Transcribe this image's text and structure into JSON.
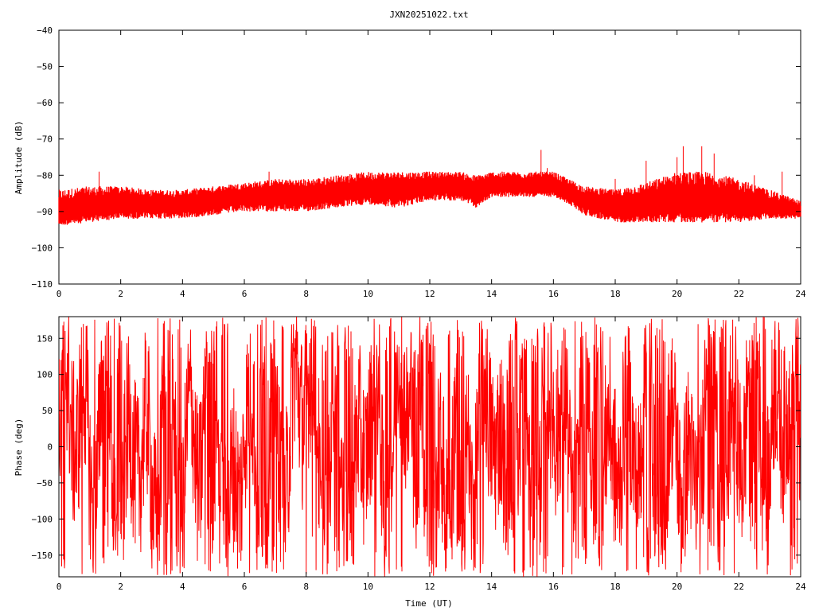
{
  "title": "JXN20251022.txt",
  "colors": {
    "series": "#ff0000",
    "frame": "#000000",
    "background": "#ffffff"
  },
  "chart_data": [
    {
      "type": "line",
      "ylabel": "Amplitude (dB)",
      "xlabel": "",
      "xlim": [
        0,
        24
      ],
      "ylim": [
        -110,
        -40
      ],
      "xticks": [
        0,
        2,
        4,
        6,
        8,
        10,
        12,
        14,
        16,
        18,
        20,
        22,
        24
      ],
      "yticks": [
        -110,
        -100,
        -90,
        -80,
        -70,
        -60,
        -50,
        -40
      ],
      "xtick_labels": [
        "0",
        "2",
        "4",
        "6",
        "8",
        "10",
        "12",
        "14",
        "16",
        "18",
        "20",
        "22",
        "24"
      ],
      "ytick_labels": [
        "−110",
        "−100",
        "−90",
        "−80",
        "−70",
        "−60",
        "−50",
        "−40"
      ],
      "grid": false,
      "series": [
        {
          "envelope": true,
          "x": [
            0,
            1,
            2,
            3,
            4,
            5,
            6,
            7,
            8,
            9,
            10,
            11,
            12,
            13,
            13.5,
            14,
            15,
            16,
            16.5,
            17,
            18,
            19,
            20,
            21,
            22,
            23,
            24
          ],
          "y_low": [
            -94,
            -93,
            -92,
            -92,
            -92,
            -91,
            -90,
            -90,
            -90,
            -89,
            -88,
            -89,
            -87,
            -87,
            -89,
            -86,
            -86,
            -86,
            -88,
            -91,
            -93,
            -93,
            -93,
            -93,
            -93,
            -92,
            -92
          ],
          "y_mid": [
            -90,
            -89,
            -88,
            -88,
            -88,
            -87,
            -86,
            -86,
            -86,
            -85,
            -84,
            -84,
            -83,
            -83,
            -85,
            -83,
            -83,
            -83,
            -85,
            -87,
            -89,
            -88,
            -87,
            -87,
            -88,
            -89,
            -90
          ],
          "y_high": [
            -84,
            -83,
            -83,
            -84,
            -84,
            -83,
            -82,
            -81,
            -81,
            -80,
            -79,
            -79,
            -79,
            -79,
            -80,
            -79,
            -79,
            -79,
            -81,
            -83,
            -84,
            -82,
            -79,
            -79,
            -81,
            -84,
            -87
          ],
          "spikes": [
            {
              "x": 1.3,
              "y": -79
            },
            {
              "x": 6.8,
              "y": -79
            },
            {
              "x": 12.2,
              "y": -80
            },
            {
              "x": 15.6,
              "y": -73
            },
            {
              "x": 15.8,
              "y": -78
            },
            {
              "x": 18.0,
              "y": -81
            },
            {
              "x": 19.0,
              "y": -76
            },
            {
              "x": 20.0,
              "y": -75
            },
            {
              "x": 20.2,
              "y": -72
            },
            {
              "x": 20.8,
              "y": -72
            },
            {
              "x": 21.2,
              "y": -74
            },
            {
              "x": 22.5,
              "y": -80
            },
            {
              "x": 23.4,
              "y": -79
            }
          ]
        }
      ]
    },
    {
      "type": "line",
      "ylabel": "Phase (deg)",
      "xlabel": "Time (UT)",
      "xlim": [
        0,
        24
      ],
      "ylim": [
        -180,
        180
      ],
      "xticks": [
        0,
        2,
        4,
        6,
        8,
        10,
        12,
        14,
        16,
        18,
        20,
        22,
        24
      ],
      "yticks": [
        -150,
        -100,
        -50,
        0,
        50,
        100,
        150
      ],
      "xtick_labels": [
        "0",
        "2",
        "4",
        "6",
        "8",
        "10",
        "12",
        "14",
        "16",
        "18",
        "20",
        "22",
        "24"
      ],
      "ytick_labels": [
        "−150",
        "−100",
        "−50",
        "0",
        "50",
        "100",
        "150"
      ],
      "grid": false,
      "series": [
        {
          "wrapped_phase": true,
          "x": [
            0,
            0.5,
            1,
            1.5,
            2,
            2.5,
            3,
            3.5,
            4,
            4.5,
            5,
            5.5,
            6,
            6.5,
            7,
            7.5,
            8,
            8.5,
            9,
            9.5,
            10,
            10.5,
            11,
            11.5,
            12,
            12.5,
            13,
            13.5,
            14,
            14.5,
            15,
            15.5,
            16,
            16.5,
            17,
            17.5,
            18,
            18.5,
            19,
            19.5,
            20,
            20.5,
            21,
            21.5,
            22,
            22.5,
            23,
            23.5,
            24
          ],
          "y": [
            0,
            90,
            -50,
            120,
            -150,
            60,
            -90,
            130,
            -60,
            20,
            170,
            -170,
            80,
            -120,
            30,
            -20,
            150,
            -90,
            60,
            -140,
            100,
            -60,
            40,
            170,
            -120,
            -80,
            150,
            -40,
            110,
            -160,
            20,
            -100,
            130,
            -60,
            90,
            -150,
            40,
            -30,
            110,
            -170,
            60,
            -120,
            170,
            -90,
            30,
            150,
            -60,
            120,
            0
          ]
        }
      ]
    }
  ]
}
